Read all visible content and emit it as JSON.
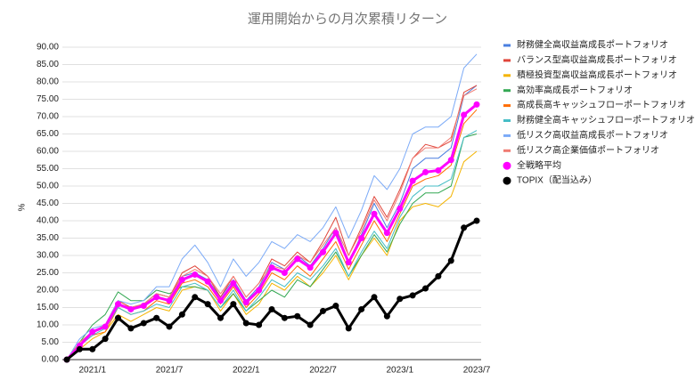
{
  "chart_data": {
    "type": "line",
    "title": "運用開始からの月次累積リターン",
    "ylabel": "%",
    "categories": [
      null,
      null,
      "2021/1",
      null,
      null,
      null,
      null,
      null,
      "2021/7",
      null,
      null,
      null,
      null,
      null,
      "2022/1",
      null,
      null,
      null,
      null,
      null,
      "2022/7",
      null,
      null,
      null,
      null,
      null,
      "2023/1",
      null,
      null,
      null,
      null,
      null,
      "2023/7"
    ],
    "ylim": [
      0,
      90
    ],
    "yticks": [
      {
        "value": 0,
        "label": "0.00"
      },
      {
        "value": 5,
        "label": "5.00"
      },
      {
        "value": 10,
        "label": "10.00"
      },
      {
        "value": 15,
        "label": "15.00"
      },
      {
        "value": 20,
        "label": "20.00"
      },
      {
        "value": 25,
        "label": "25.00"
      },
      {
        "value": 30,
        "label": "30.00"
      },
      {
        "value": 35,
        "label": "35.00"
      },
      {
        "value": 40,
        "label": "40.00"
      },
      {
        "value": 45,
        "label": "45.00"
      },
      {
        "value": 50,
        "label": "50.00"
      },
      {
        "value": 55,
        "label": "55.00"
      },
      {
        "value": 60,
        "label": "60.00"
      },
      {
        "value": 65,
        "label": "65.00"
      },
      {
        "value": 70,
        "label": "70.00"
      },
      {
        "value": 75,
        "label": "75.00"
      },
      {
        "value": 80,
        "label": "80.00"
      },
      {
        "value": 85,
        "label": "85.00"
      },
      {
        "value": 90,
        "label": "90.00"
      }
    ],
    "grid": true,
    "legend": "right",
    "series": [
      {
        "name": "財務健全高収益高成長ポートフォリオ",
        "color": "#4a7fe0",
        "values": [
          0,
          5,
          8,
          9.5,
          16,
          15,
          16,
          19,
          18,
          24,
          25,
          23,
          18,
          23,
          17,
          21,
          28,
          26,
          30,
          27,
          32,
          38,
          28,
          36,
          45,
          38,
          45,
          55,
          58,
          58,
          61,
          76,
          79
        ]
      },
      {
        "name": "バランス型高収益高成長ポートフォリオ",
        "color": "#e0453a",
        "values": [
          0,
          5,
          8,
          10,
          17,
          15,
          16,
          19,
          18,
          25,
          27,
          24,
          18,
          24,
          18,
          22,
          29,
          27,
          31,
          28,
          34,
          41,
          30,
          38,
          47,
          41,
          49,
          58,
          62,
          61,
          63,
          77,
          79
        ]
      },
      {
        "name": "積極投資型高収益高成長ポートフォリオ",
        "color": "#f4b400",
        "values": [
          0,
          3,
          6,
          8,
          13,
          11,
          13,
          15,
          14,
          20,
          21,
          20,
          14,
          19,
          13,
          16,
          22,
          20,
          24,
          21,
          25,
          30,
          23,
          30,
          35,
          30,
          40,
          44,
          45,
          44,
          47,
          57,
          60
        ]
      },
      {
        "name": "高効率高成長ポートフォリオ",
        "color": "#34a853",
        "values": [
          0,
          5,
          10,
          13,
          19.5,
          17,
          17,
          20,
          19,
          21,
          21,
          20,
          15,
          19,
          14,
          17,
          20,
          18,
          23,
          21,
          26,
          31,
          24,
          30,
          36,
          31,
          39,
          45,
          48,
          48,
          50,
          64,
          65
        ]
      },
      {
        "name": "高成長高キャッシュフローポートフォリオ",
        "color": "#ff6d01",
        "values": [
          0,
          4,
          7,
          8,
          15,
          13,
          14,
          17,
          16,
          22,
          23,
          21,
          16,
          21,
          15,
          19,
          25,
          23,
          27,
          24,
          29,
          34,
          26,
          33,
          40,
          34,
          42,
          50,
          52,
          53,
          56,
          68,
          72
        ]
      },
      {
        "name": "財務健全高キャッシュフローポートフォリオ",
        "color": "#46bdc6",
        "values": [
          0,
          4,
          7,
          9,
          15,
          13,
          14,
          16,
          15,
          21,
          22,
          20,
          15,
          20,
          14,
          18,
          23,
          21,
          25,
          23,
          27,
          32,
          24,
          31,
          37,
          32,
          41,
          47,
          50,
          50,
          52,
          64,
          66
        ]
      },
      {
        "name": "低リスク高収益高成長ポートフォリオ",
        "color": "#7baaf7",
        "values": [
          0,
          6,
          9,
          10,
          17,
          16,
          17,
          21,
          21,
          29,
          33,
          28,
          21,
          29,
          24,
          28,
          34,
          32,
          36,
          34,
          38,
          44,
          35,
          43,
          53,
          49,
          55,
          65,
          67,
          67,
          70,
          84,
          88
        ]
      },
      {
        "name": "低リスク高企業価値ポートフォリオ",
        "color": "#f07b72",
        "values": [
          0,
          5,
          8,
          10,
          16,
          15,
          16,
          19,
          18,
          24,
          26,
          24,
          19,
          24,
          18,
          22,
          27,
          26,
          30,
          28,
          33,
          38,
          30,
          37,
          46,
          40,
          48,
          58,
          61,
          61,
          64,
          76,
          78
        ]
      },
      {
        "name": "全戦略平均",
        "color": "#ff00ff",
        "marker": true,
        "values": [
          0,
          4,
          8,
          9.5,
          16,
          14.5,
          15.5,
          18,
          17,
          23,
          24.5,
          22.5,
          17,
          22,
          16.5,
          20,
          26.5,
          25,
          29,
          26.5,
          31,
          36.5,
          28,
          35,
          42,
          36.5,
          43.5,
          51.5,
          54,
          54.5,
          57.5,
          70.5,
          73.5
        ]
      },
      {
        "name": "TOPIX（配当込み）",
        "color": "#000000",
        "marker": true,
        "values": [
          0,
          3,
          3,
          6,
          12,
          9,
          10.5,
          12,
          9.5,
          13,
          18,
          16,
          12,
          16,
          10.5,
          10,
          14.5,
          12,
          12.5,
          10,
          14,
          15.5,
          9,
          14.5,
          18,
          12.5,
          17.5,
          18.5,
          20.5,
          24,
          28.5,
          38,
          40
        ]
      }
    ]
  }
}
